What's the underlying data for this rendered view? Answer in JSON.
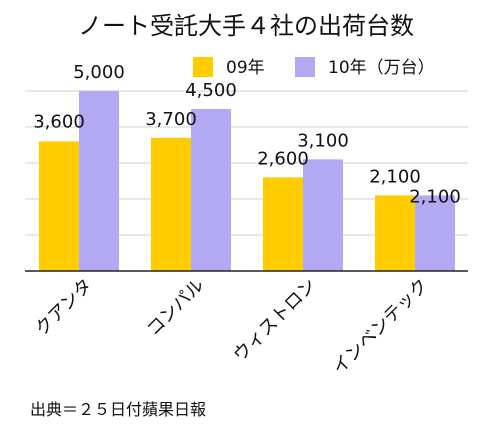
{
  "chart_data": {
    "type": "bar",
    "title": "ノート受託大手４社の出荷台数",
    "categories": [
      "クアンタ",
      "コンパル",
      "ウィストロン",
      "インベンテック"
    ],
    "series": [
      {
        "name": "09年",
        "color": "#ffcc00",
        "values": [
          3600,
          3700,
          2600,
          2100
        ],
        "labels": [
          "3,600",
          "3,700",
          "2,600",
          "2,100"
        ]
      },
      {
        "name": "10年（万台）",
        "color": "#b3a8f2",
        "values": [
          5000,
          4500,
          3100,
          2100
        ],
        "labels": [
          "5,000",
          "4,500",
          "3,100",
          "2,100"
        ]
      }
    ],
    "ylim": [
      0,
      5000
    ],
    "grid": true,
    "legend": "top-right"
  },
  "source": "出典＝２５日付蘋果日報"
}
